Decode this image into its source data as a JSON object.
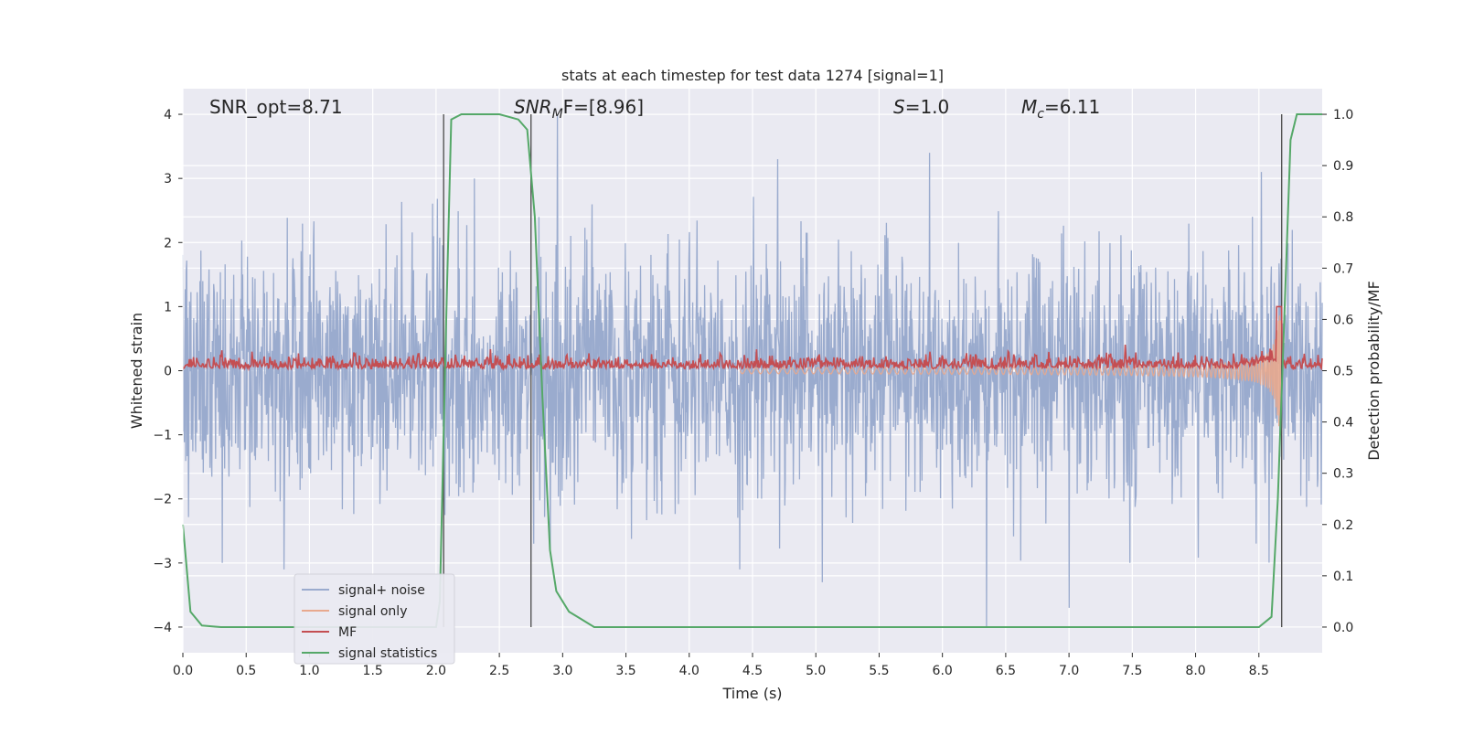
{
  "chart_data": {
    "type": "line",
    "title": "stats at each timestep for test data 1274 [signal=1]",
    "xlabel": "Time (s)",
    "ylabel": "Whitened strain",
    "y2label": "Detection probability/MF",
    "xlim": [
      0.0,
      9.0
    ],
    "ylim": [
      -4.4,
      4.4
    ],
    "y2lim": [
      -0.05,
      1.05
    ],
    "x_ticks": [
      "0.0",
      "0.5",
      "1.0",
      "1.5",
      "2.0",
      "2.5",
      "3.0",
      "3.5",
      "4.0",
      "4.5",
      "5.0",
      "5.5",
      "6.0",
      "6.5",
      "7.0",
      "7.5",
      "8.0",
      "8.5"
    ],
    "y_ticks": [
      "4",
      "3",
      "2",
      "1",
      "0",
      "−1",
      "−2",
      "−3",
      "−4"
    ],
    "y2_ticks": [
      "1.0",
      "0.9",
      "0.8",
      "0.7",
      "0.6",
      "0.5",
      "0.4",
      "0.3",
      "0.2",
      "0.1",
      "0.0"
    ],
    "grid": true,
    "legend_position": "lower-left",
    "annotations": {
      "snr_opt": "SNR_opt=8.71",
      "snr_mf_main": "SNR",
      "snr_mf_sub": "M",
      "snr_mf_rest": "F=[8.96]",
      "s_main": "S",
      "s_rest": "=1.0",
      "mc_main": "M",
      "mc_sub": "c",
      "mc_rest": "=6.11"
    },
    "vertical_markers_x": [
      2.06,
      2.75,
      8.68
    ],
    "series": [
      {
        "name": "signal+ noise",
        "color": "#9aabce",
        "description_type": "noise",
        "typical_envelope": [
          -1.6,
          1.6
        ],
        "extreme_peaks": [
          [
            2.96,
            4.0
          ],
          [
            2.77,
            -2.7
          ],
          [
            6.35,
            -4.0
          ],
          [
            7.0,
            -3.7
          ],
          [
            5.05,
            -3.3
          ],
          [
            4.4,
            -3.1
          ],
          [
            0.8,
            -3.1
          ],
          [
            5.9,
            3.4
          ],
          [
            4.7,
            3.3
          ],
          [
            8.52,
            3.1
          ]
        ]
      },
      {
        "name": "signal only",
        "color": "#e8a98e",
        "description_type": "chirp",
        "chirp_start": 4.4,
        "merger": 8.68,
        "peak_amplitude": 0.9
      },
      {
        "name": "MF",
        "color": "#c44e52",
        "baseline_y2": 0.5,
        "spike": [
          8.66,
          0.625
        ]
      },
      {
        "name": "signal statistics",
        "color": "#55a868",
        "x": [
          0.0,
          0.06,
          0.15,
          0.3,
          0.6,
          1.0,
          1.5,
          2.0,
          2.03,
          2.08,
          2.12,
          2.2,
          2.5,
          2.65,
          2.72,
          2.78,
          2.84,
          2.9,
          2.95,
          3.05,
          3.15,
          3.25,
          3.5,
          4.0,
          5.0,
          6.0,
          7.0,
          8.0,
          8.5,
          8.6,
          8.65,
          8.7,
          8.75,
          8.8,
          8.9,
          9.0
        ],
        "y": [
          0.2,
          0.03,
          0.003,
          0.0,
          0.0,
          0.0,
          0.0,
          0.0,
          0.05,
          0.6,
          0.99,
          1.0,
          1.0,
          0.99,
          0.97,
          0.8,
          0.45,
          0.15,
          0.07,
          0.03,
          0.015,
          0.0,
          0.0,
          0.0,
          0.0,
          0.0,
          0.0,
          0.0,
          0.0,
          0.02,
          0.25,
          0.6,
          0.95,
          1.0,
          1.0,
          1.0
        ]
      }
    ]
  }
}
